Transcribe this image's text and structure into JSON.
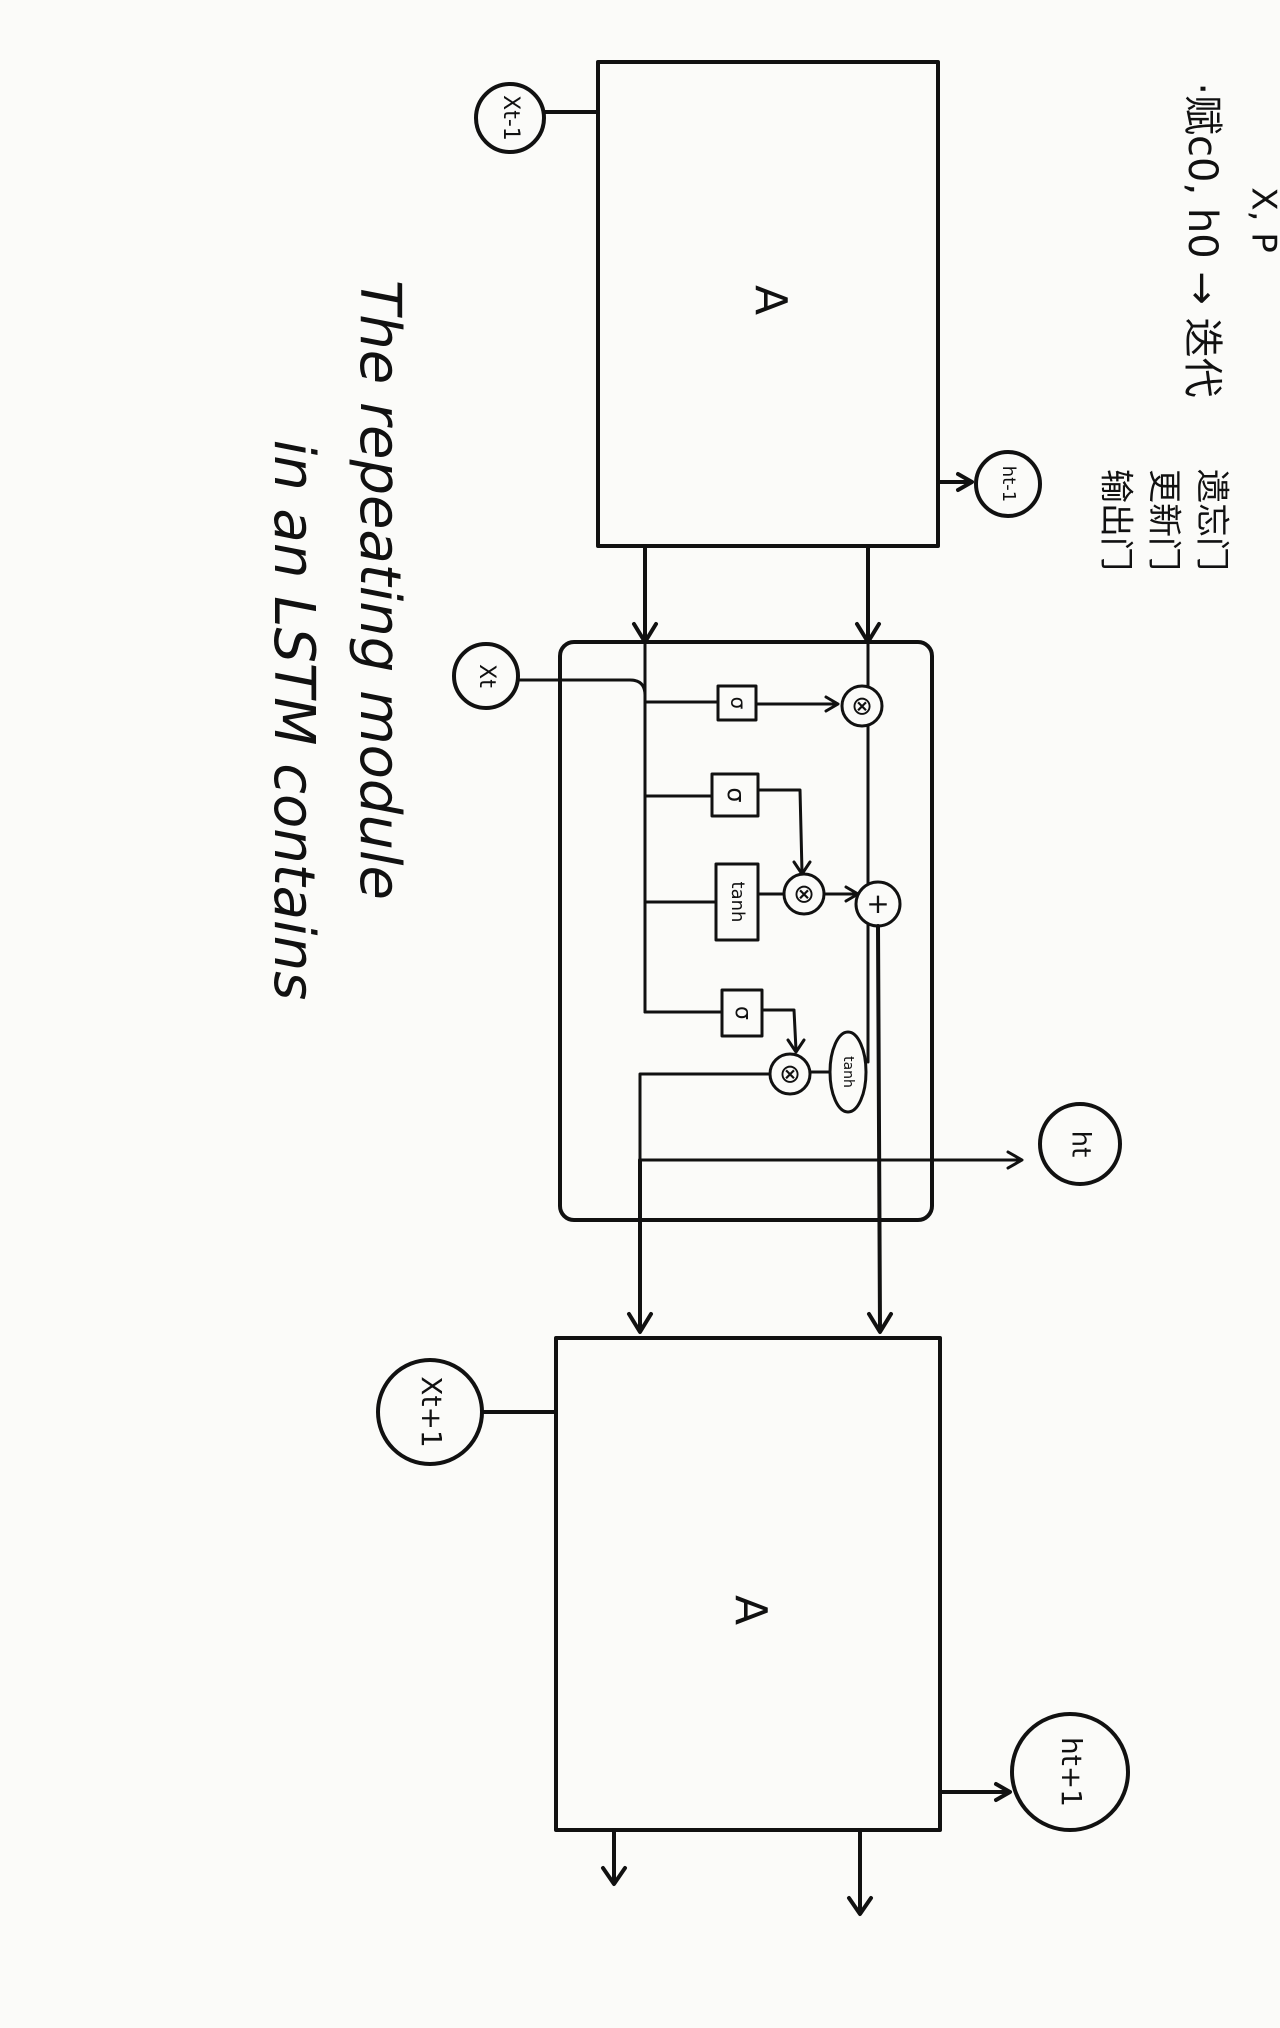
{
  "modules": {
    "prev_label": "A",
    "next_label": "A"
  },
  "inputs": {
    "x_prev": "Xt-1",
    "x_curr": "Xt",
    "x_next": "Xt+1"
  },
  "outputs": {
    "h_prev": "ht-1",
    "h_curr": "ht",
    "h_next": "ht+1"
  },
  "cell": {
    "sigma_1": "σ",
    "sigma_2": "σ",
    "tanh_gate": "tanh",
    "sigma_3": "σ",
    "tanh_out": "tanh",
    "multiply_symbol": "⊗",
    "add_symbol": "+"
  },
  "caption": {
    "line1": "The repeating module",
    "line2": "in an LSTM contains"
  },
  "notes": {
    "init_line": "·赋c0, h0 → 迭代",
    "gate_forget": "遗忘门",
    "gate_update": "更新门",
    "gate_output": "输出门",
    "corner_mark": "X, P"
  }
}
